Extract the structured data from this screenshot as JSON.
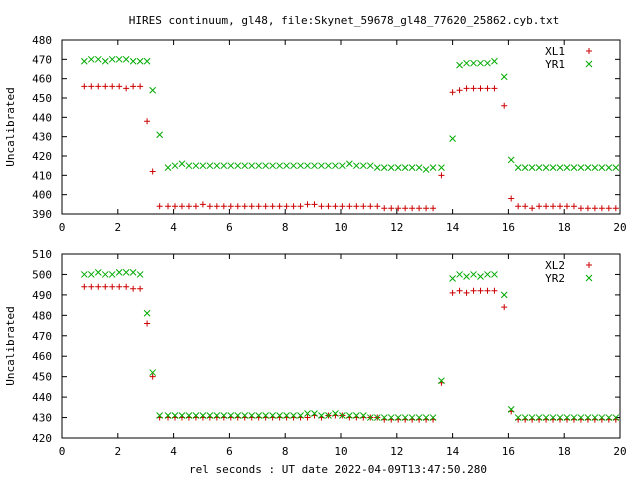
{
  "figure": {
    "title": "HIRES continuum, gl48, file:Skynet_59678_gl48_77620_25862.cyb.txt",
    "xlabel": "rel seconds : UT date 2022-04-09T13:47:50.280"
  },
  "chart_data": [
    {
      "type": "scatter",
      "ylabel": "Uncalibrated",
      "xlim": [
        0,
        20
      ],
      "ylim": [
        390,
        480
      ],
      "xticks": [
        0,
        2,
        4,
        6,
        8,
        10,
        12,
        14,
        16,
        18,
        20
      ],
      "yticks": [
        390,
        400,
        410,
        420,
        430,
        440,
        450,
        460,
        470,
        480
      ],
      "legend_position": "top-right",
      "series": [
        {
          "name": "XL1",
          "marker": "plus",
          "color": "#cc0000",
          "x": [
            0.8,
            1.05,
            1.3,
            1.55,
            1.8,
            2.05,
            2.3,
            2.55,
            2.8,
            3.05,
            3.25,
            3.5,
            3.8,
            4.05,
            4.3,
            4.55,
            4.8,
            5.05,
            5.3,
            5.55,
            5.8,
            6.05,
            6.3,
            6.55,
            6.8,
            7.05,
            7.3,
            7.55,
            7.8,
            8.05,
            8.3,
            8.55,
            8.8,
            9.05,
            9.3,
            9.55,
            9.8,
            10.05,
            10.3,
            10.55,
            10.8,
            11.05,
            11.3,
            11.55,
            11.8,
            12.05,
            12.3,
            12.55,
            12.8,
            13.05,
            13.3,
            13.6,
            14.0,
            14.25,
            14.5,
            14.75,
            15.0,
            15.25,
            15.5,
            15.85,
            16.1,
            16.35,
            16.6,
            16.85,
            17.1,
            17.35,
            17.6,
            17.85,
            18.1,
            18.35,
            18.6,
            18.85,
            19.1,
            19.35,
            19.6,
            19.85
          ],
          "y": [
            456,
            456,
            456,
            456,
            456,
            456,
            455,
            456,
            456,
            438,
            412,
            394,
            394,
            394,
            394,
            394,
            394,
            395,
            394,
            394,
            394,
            394,
            394,
            394,
            394,
            394,
            394,
            394,
            394,
            394,
            394,
            394,
            395,
            395,
            394,
            394,
            394,
            394,
            394,
            394,
            394,
            394,
            394,
            393,
            393,
            393,
            393,
            393,
            393,
            393,
            393,
            410,
            453,
            454,
            455,
            455,
            455,
            455,
            455,
            446,
            398,
            394,
            394,
            393,
            394,
            394,
            394,
            394,
            394,
            394,
            393,
            393,
            393,
            393,
            393,
            393
          ]
        },
        {
          "name": "YR1",
          "marker": "cross",
          "color": "#00aa00",
          "x": [
            0.8,
            1.05,
            1.3,
            1.55,
            1.8,
            2.05,
            2.3,
            2.55,
            2.8,
            3.05,
            3.25,
            3.5,
            3.8,
            4.05,
            4.3,
            4.55,
            4.8,
            5.05,
            5.3,
            5.55,
            5.8,
            6.05,
            6.3,
            6.55,
            6.8,
            7.05,
            7.3,
            7.55,
            7.8,
            8.05,
            8.3,
            8.55,
            8.8,
            9.05,
            9.3,
            9.55,
            9.8,
            10.05,
            10.3,
            10.55,
            10.8,
            11.05,
            11.3,
            11.55,
            11.8,
            12.05,
            12.3,
            12.55,
            12.8,
            13.05,
            13.3,
            13.6,
            14.0,
            14.25,
            14.5,
            14.75,
            15.0,
            15.25,
            15.5,
            15.85,
            16.1,
            16.35,
            16.6,
            16.85,
            17.1,
            17.35,
            17.6,
            17.85,
            18.1,
            18.35,
            18.6,
            18.85,
            19.1,
            19.35,
            19.6,
            19.85
          ],
          "y": [
            469,
            470,
            470,
            469,
            470,
            470,
            470,
            469,
            469,
            469,
            454,
            431,
            414,
            415,
            416,
            415,
            415,
            415,
            415,
            415,
            415,
            415,
            415,
            415,
            415,
            415,
            415,
            415,
            415,
            415,
            415,
            415,
            415,
            415,
            415,
            415,
            415,
            415,
            416,
            415,
            415,
            415,
            414,
            414,
            414,
            414,
            414,
            414,
            414,
            413,
            414,
            414,
            429,
            467,
            468,
            468,
            468,
            468,
            469,
            461,
            418,
            414,
            414,
            414,
            414,
            414,
            414,
            414,
            414,
            414,
            414,
            414,
            414,
            414,
            414,
            414
          ]
        }
      ]
    },
    {
      "type": "scatter",
      "ylabel": "Uncalibrated",
      "xlim": [
        0,
        20
      ],
      "ylim": [
        420,
        510
      ],
      "xticks": [
        0,
        2,
        4,
        6,
        8,
        10,
        12,
        14,
        16,
        18,
        20
      ],
      "yticks": [
        420,
        430,
        440,
        450,
        460,
        470,
        480,
        490,
        500,
        510
      ],
      "legend_position": "top-right",
      "series": [
        {
          "name": "XL2",
          "marker": "plus",
          "color": "#cc0000",
          "x": [
            0.8,
            1.05,
            1.3,
            1.55,
            1.8,
            2.05,
            2.3,
            2.55,
            2.8,
            3.05,
            3.25,
            3.5,
            3.8,
            4.05,
            4.3,
            4.55,
            4.8,
            5.05,
            5.3,
            5.55,
            5.8,
            6.05,
            6.3,
            6.55,
            6.8,
            7.05,
            7.3,
            7.55,
            7.8,
            8.05,
            8.3,
            8.55,
            8.8,
            9.05,
            9.3,
            9.55,
            9.8,
            10.05,
            10.3,
            10.55,
            10.8,
            11.05,
            11.3,
            11.55,
            11.8,
            12.05,
            12.3,
            12.55,
            12.8,
            13.05,
            13.3,
            13.6,
            14.0,
            14.25,
            14.5,
            14.75,
            15.0,
            15.25,
            15.5,
            15.85,
            16.1,
            16.35,
            16.6,
            16.85,
            17.1,
            17.35,
            17.6,
            17.85,
            18.1,
            18.35,
            18.6,
            18.85,
            19.1,
            19.35,
            19.6,
            19.85
          ],
          "y": [
            494,
            494,
            494,
            494,
            494,
            494,
            494,
            493,
            493,
            476,
            450,
            430,
            430,
            430,
            430,
            430,
            430,
            430,
            430,
            430,
            430,
            430,
            430,
            430,
            430,
            430,
            430,
            430,
            430,
            430,
            430,
            430,
            430,
            431,
            430,
            431,
            431,
            431,
            430,
            430,
            430,
            430,
            430,
            429,
            429,
            429,
            429,
            429,
            429,
            429,
            429,
            447,
            491,
            492,
            491,
            492,
            492,
            492,
            492,
            484,
            433,
            429,
            429,
            429,
            429,
            429,
            429,
            429,
            429,
            429,
            429,
            429,
            429,
            429,
            429,
            429
          ]
        },
        {
          "name": "YR2",
          "marker": "cross",
          "color": "#00aa00",
          "x": [
            0.8,
            1.05,
            1.3,
            1.55,
            1.8,
            2.05,
            2.3,
            2.55,
            2.8,
            3.05,
            3.25,
            3.5,
            3.8,
            4.05,
            4.3,
            4.55,
            4.8,
            5.05,
            5.3,
            5.55,
            5.8,
            6.05,
            6.3,
            6.55,
            6.8,
            7.05,
            7.3,
            7.55,
            7.8,
            8.05,
            8.3,
            8.55,
            8.8,
            9.05,
            9.3,
            9.55,
            9.8,
            10.05,
            10.3,
            10.55,
            10.8,
            11.05,
            11.3,
            11.55,
            11.8,
            12.05,
            12.3,
            12.55,
            12.8,
            13.05,
            13.3,
            13.6,
            14.0,
            14.25,
            14.5,
            14.75,
            15.0,
            15.25,
            15.5,
            15.85,
            16.1,
            16.35,
            16.6,
            16.85,
            17.1,
            17.35,
            17.6,
            17.85,
            18.1,
            18.35,
            18.6,
            18.85,
            19.1,
            19.35,
            19.6,
            19.85
          ],
          "y": [
            500,
            500,
            501,
            500,
            500,
            501,
            501,
            501,
            500,
            481,
            452,
            431,
            431,
            431,
            431,
            431,
            431,
            431,
            431,
            431,
            431,
            431,
            431,
            431,
            431,
            431,
            431,
            431,
            431,
            431,
            431,
            431,
            432,
            432,
            431,
            431,
            432,
            431,
            431,
            431,
            431,
            430,
            430,
            430,
            430,
            430,
            430,
            430,
            430,
            430,
            430,
            448,
            498,
            500,
            499,
            500,
            499,
            500,
            500,
            490,
            434,
            430,
            430,
            430,
            430,
            430,
            430,
            430,
            430,
            430,
            430,
            430,
            430,
            430,
            430,
            430
          ]
        }
      ]
    }
  ]
}
